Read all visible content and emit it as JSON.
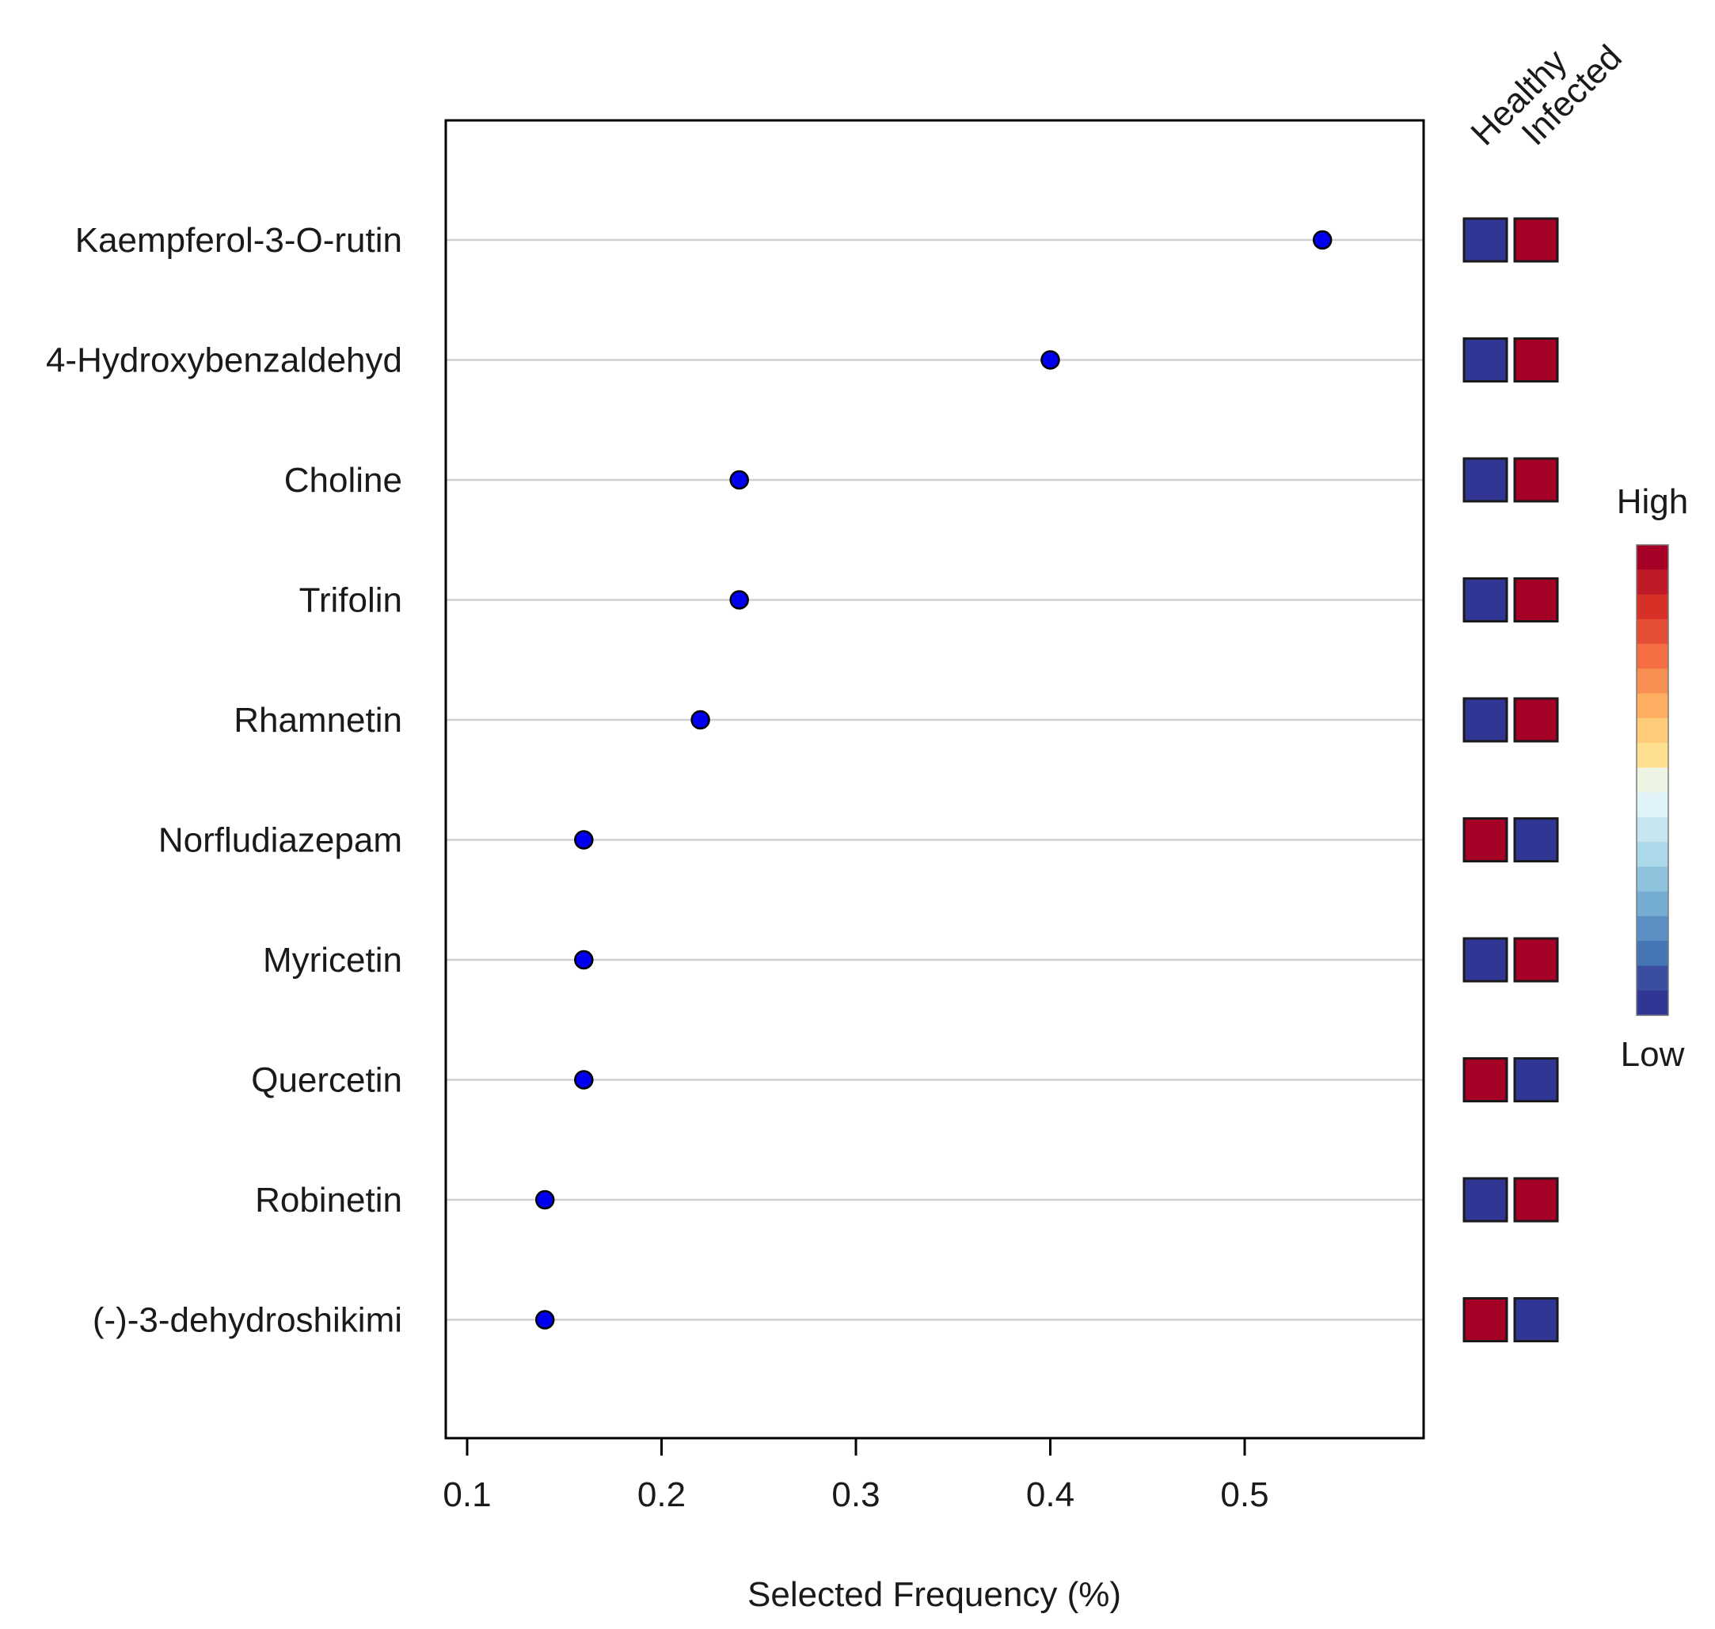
{
  "chart_data": {
    "type": "scatter",
    "title": "",
    "xlabel": "Selected Frequency (%)",
    "ylabel": "",
    "xlim": [
      0.088,
      0.592
    ],
    "xticks": [
      "0.1",
      "0.2",
      "0.3",
      "0.4",
      "0.5"
    ],
    "grid": true,
    "categories": [
      "Kaempferol-3-O-rutin",
      "4-Hydroxybenzaldehyd",
      "Choline",
      "Trifolin",
      "Rhamnetin",
      "Norfludiazepam",
      "Myricetin",
      "Quercetin",
      "Robinetin",
      "(-)-3-dehydroshikimi"
    ],
    "values": [
      0.54,
      0.4,
      0.24,
      0.24,
      0.22,
      0.16,
      0.16,
      0.16,
      0.14,
      0.14
    ],
    "groups": [
      "Healthy",
      "Infected"
    ],
    "group_levels": [
      [
        "low",
        "high"
      ],
      [
        "low",
        "high"
      ],
      [
        "low",
        "high"
      ],
      [
        "low",
        "high"
      ],
      [
        "low",
        "high"
      ],
      [
        "high",
        "low"
      ],
      [
        "low",
        "high"
      ],
      [
        "high",
        "low"
      ],
      [
        "low",
        "high"
      ],
      [
        "high",
        "low"
      ]
    ],
    "legend": {
      "high_label": "High",
      "low_label": "Low",
      "position": "right",
      "colors": [
        "#313695",
        "#3A4D9E",
        "#4575B4",
        "#5B8EC2",
        "#74ADD1",
        "#8FC3DD",
        "#ABD9E9",
        "#C6E6F0",
        "#E0F3F8",
        "#EEF4E4",
        "#FEE090",
        "#FDCB7A",
        "#FDAE61",
        "#F88F52",
        "#F46D43",
        "#E34E34",
        "#D73027",
        "#BF1A28",
        "#A50026"
      ]
    },
    "marker_color": "#0000EE",
    "high_color": "#A50026",
    "low_color": "#313695"
  }
}
